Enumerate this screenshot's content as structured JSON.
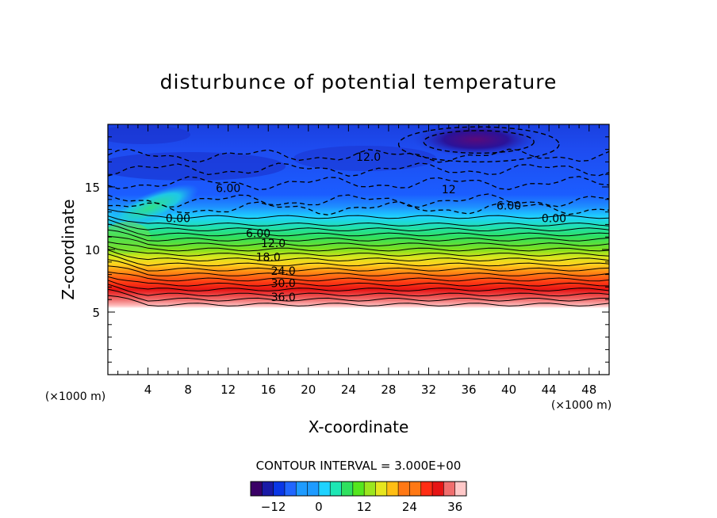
{
  "chart_data": {
    "type": "heatmap",
    "title": "disturbunce of potential temperature",
    "xlabel": "X-coordinate",
    "ylabel": "Z-coordinate",
    "x_unit": "(×1000 m)",
    "z_unit": "(×1000 m)",
    "xlim": [
      0,
      50
    ],
    "ylim": [
      0,
      20
    ],
    "x_ticks": [
      4,
      8,
      12,
      16,
      20,
      24,
      28,
      32,
      36,
      40,
      44,
      48
    ],
    "y_ticks": [
      5,
      10,
      15
    ],
    "contour_interval_label": "CONTOUR INTERVAL = 3.000E+00",
    "contour_interval": 3.0,
    "colorbar": {
      "range": [
        -18,
        39
      ],
      "ticks": [
        -12,
        0,
        12,
        24,
        36
      ]
    },
    "contour_labels": [
      {
        "text": "12.0",
        "x": 26,
        "y": 17.4
      },
      {
        "text": "6.00",
        "x": 12,
        "y": 14.9
      },
      {
        "text": "12",
        "x": 34,
        "y": 14.8
      },
      {
        "text": "6.00",
        "x": 40,
        "y": 13.5
      },
      {
        "text": "0.00",
        "x": 7,
        "y": 12.5
      },
      {
        "text": "0.00",
        "x": 44.5,
        "y": 12.5
      },
      {
        "text": "6.00",
        "x": 15,
        "y": 11.3
      },
      {
        "text": "12.0",
        "x": 16.5,
        "y": 10.5
      },
      {
        "text": "18.0",
        "x": 16,
        "y": 9.4
      },
      {
        "text": "24.0",
        "x": 17.5,
        "y": 8.3
      },
      {
        "text": "30.0",
        "x": 17.5,
        "y": 7.3
      },
      {
        "text": "36.0",
        "x": 17.5,
        "y": 6.2
      }
    ]
  },
  "colors": {
    "scale": [
      "#3a0066",
      "#1a1aa6",
      "#0a37e6",
      "#2166ff",
      "#1e9bff",
      "#1ed2ff",
      "#1ee6b4",
      "#2fe05f",
      "#55e61e",
      "#9be61e",
      "#e6e61e",
      "#ffbe14",
      "#ff7814",
      "#ff2d14",
      "#e61414",
      "#f06e6e",
      "#ffc8c8"
    ]
  }
}
